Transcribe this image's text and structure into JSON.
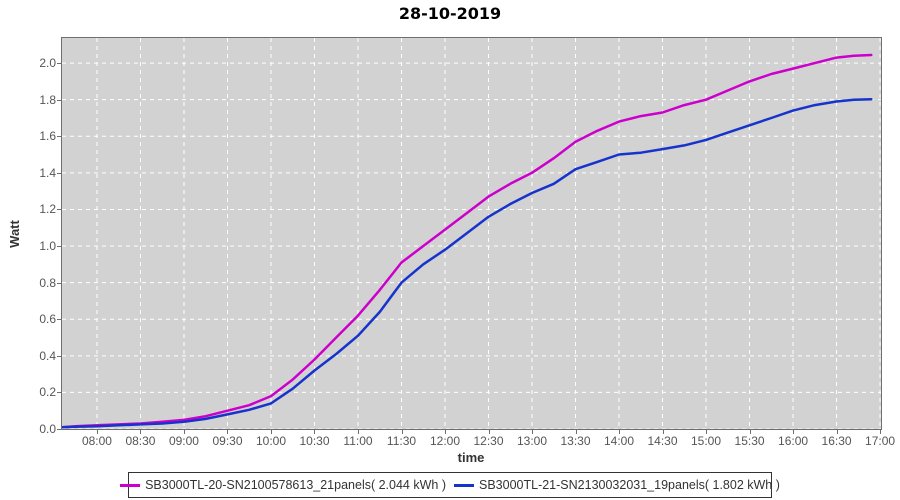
{
  "chart_data": {
    "type": "line",
    "title": "28-10-2019",
    "xlabel": "time",
    "ylabel": "Watt",
    "plot_bg_color": "#d2d2d2",
    "grid_color": "#ffffff",
    "grid_style": "dashed",
    "legend_position": "bottom",
    "xlim": [
      7.598,
      17.011
    ],
    "ylim": [
      0,
      2.137
    ],
    "x_ticks": [
      8,
      8.5,
      9,
      9.5,
      10,
      10.5,
      11,
      11.5,
      12,
      12.5,
      13,
      13.5,
      14,
      14.5,
      15,
      15.5,
      16,
      16.5,
      17
    ],
    "x_tick_labels": [
      "08:00",
      "08:30",
      "09:00",
      "09:30",
      "10:00",
      "10:30",
      "11:00",
      "11:30",
      "12:00",
      "12:30",
      "13:00",
      "13:30",
      "14:00",
      "14:30",
      "15:00",
      "15:30",
      "16:00",
      "16:30",
      "17:00"
    ],
    "y_ticks": [
      0,
      0.2,
      0.4,
      0.6,
      0.8,
      1.0,
      1.2,
      1.4,
      1.6,
      1.8,
      2.0
    ],
    "y_tick_labels": [
      "0.0",
      "0.2",
      "0.4",
      "0.6",
      "0.8",
      "1.0",
      "1.2",
      "1.4",
      "1.6",
      "1.8",
      "2.0"
    ],
    "x": [
      7.6,
      7.75,
      8.0,
      8.25,
      8.5,
      8.75,
      9.0,
      9.25,
      9.5,
      9.75,
      10.0,
      10.25,
      10.5,
      10.75,
      11.0,
      11.25,
      11.5,
      11.75,
      12.0,
      12.25,
      12.5,
      12.75,
      13.0,
      13.25,
      13.5,
      13.75,
      14.0,
      14.25,
      14.5,
      14.75,
      15.0,
      15.25,
      15.5,
      15.75,
      16.0,
      16.25,
      16.5,
      16.7,
      16.9
    ],
    "series": [
      {
        "name": "SB3000TL-20-SN2100578613_21panels( 2.044 kWh )",
        "color": "#cc00cc",
        "total_kwh": "2.044",
        "values": [
          0.01,
          0.015,
          0.02,
          0.025,
          0.03,
          0.04,
          0.05,
          0.07,
          0.1,
          0.13,
          0.18,
          0.27,
          0.38,
          0.5,
          0.62,
          0.76,
          0.91,
          1.0,
          1.09,
          1.18,
          1.27,
          1.34,
          1.4,
          1.48,
          1.57,
          1.63,
          1.68,
          1.71,
          1.73,
          1.77,
          1.8,
          1.85,
          1.9,
          1.94,
          1.97,
          2.0,
          2.03,
          2.04,
          2.044
        ]
      },
      {
        "name": "SB3000TL-21-SN2130032031_19panels( 1.802 kWh )",
        "color": "#1733cb",
        "total_kwh": "1.802",
        "values": [
          0.01,
          0.012,
          0.015,
          0.02,
          0.025,
          0.03,
          0.04,
          0.055,
          0.08,
          0.105,
          0.14,
          0.22,
          0.32,
          0.41,
          0.51,
          0.64,
          0.8,
          0.9,
          0.98,
          1.07,
          1.16,
          1.23,
          1.29,
          1.34,
          1.42,
          1.46,
          1.5,
          1.51,
          1.53,
          1.55,
          1.58,
          1.62,
          1.66,
          1.7,
          1.74,
          1.77,
          1.79,
          1.8,
          1.802
        ]
      }
    ]
  }
}
